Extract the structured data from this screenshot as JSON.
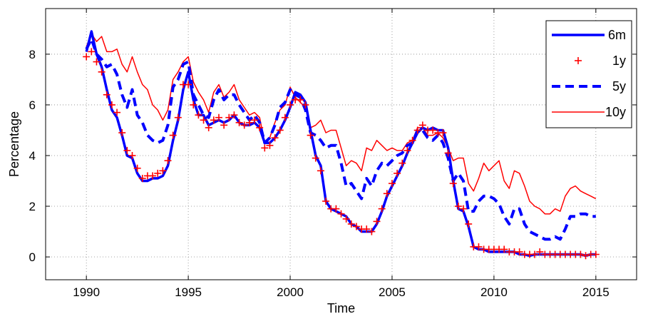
{
  "chart_data": {
    "type": "line",
    "title": "",
    "xlabel": "Time",
    "ylabel": "Percentage",
    "xlim": [
      1988,
      2017
    ],
    "ylim": [
      -0.9,
      9.8
    ],
    "x_ticks": [
      "1990",
      "1995",
      "2000",
      "2005",
      "2010",
      "2015"
    ],
    "y_ticks": [
      "0",
      "2",
      "4",
      "6",
      "8"
    ],
    "grid": true,
    "legend_position": "top-right",
    "x": [
      1990.0,
      1990.25,
      1990.5,
      1990.75,
      1991.0,
      1991.25,
      1991.5,
      1991.75,
      1992.0,
      1992.25,
      1992.5,
      1992.75,
      1993.0,
      1993.25,
      1993.5,
      1993.75,
      1994.0,
      1994.25,
      1994.5,
      1994.75,
      1995.0,
      1995.25,
      1995.5,
      1995.75,
      1996.0,
      1996.25,
      1996.5,
      1996.75,
      1997.0,
      1997.25,
      1997.5,
      1997.75,
      1998.0,
      1998.25,
      1998.5,
      1998.75,
      1999.0,
      1999.25,
      1999.5,
      1999.75,
      2000.0,
      2000.25,
      2000.5,
      2000.75,
      2001.0,
      2001.25,
      2001.5,
      2001.75,
      2002.0,
      2002.25,
      2002.5,
      2002.75,
      2003.0,
      2003.25,
      2003.5,
      2003.75,
      2004.0,
      2004.25,
      2004.5,
      2004.75,
      2005.0,
      2005.25,
      2005.5,
      2005.75,
      2006.0,
      2006.25,
      2006.5,
      2006.75,
      2007.0,
      2007.25,
      2007.5,
      2007.75,
      2008.0,
      2008.25,
      2008.5,
      2008.75,
      2009.0,
      2009.25,
      2009.5,
      2009.75,
      2010.0,
      2010.25,
      2010.5,
      2010.75,
      2011.0,
      2011.25,
      2011.5,
      2011.75,
      2012.0,
      2012.25,
      2012.5,
      2012.75,
      2013.0,
      2013.25,
      2013.5,
      2013.75,
      2014.0,
      2014.25,
      2014.5,
      2014.75,
      2015.0
    ],
    "series": [
      {
        "name": "6m",
        "color": "#0000ff",
        "style": "solid-thick",
        "values": [
          8.1,
          8.9,
          8.0,
          7.5,
          6.6,
          5.8,
          5.5,
          4.8,
          4.0,
          3.9,
          3.3,
          3.0,
          3.0,
          3.1,
          3.1,
          3.2,
          3.6,
          4.6,
          5.4,
          6.6,
          7.3,
          6.2,
          5.6,
          5.6,
          5.2,
          5.3,
          5.4,
          5.3,
          5.4,
          5.6,
          5.3,
          5.2,
          5.2,
          5.3,
          5.1,
          4.5,
          4.5,
          4.7,
          5.0,
          5.4,
          5.9,
          6.5,
          6.4,
          6.1,
          5.0,
          4.0,
          3.6,
          2.2,
          1.9,
          1.8,
          1.7,
          1.6,
          1.3,
          1.2,
          1.0,
          1.0,
          1.0,
          1.3,
          1.8,
          2.4,
          2.8,
          3.2,
          3.6,
          4.1,
          4.5,
          4.9,
          5.1,
          5.0,
          5.1,
          5.0,
          5.0,
          4.3,
          3.0,
          1.9,
          1.8,
          1.2,
          0.4,
          0.3,
          0.3,
          0.2,
          0.2,
          0.2,
          0.2,
          0.2,
          0.2,
          0.1,
          0.1,
          0.05,
          0.1,
          0.1,
          0.1,
          0.1,
          0.1,
          0.1,
          0.1,
          0.1,
          0.1,
          0.1,
          0.05,
          0.1,
          0.1
        ]
      },
      {
        "name": "1y",
        "color": "#ff0000",
        "style": "plus-markers",
        "values": [
          7.9,
          8.1,
          7.7,
          7.3,
          6.4,
          6.0,
          5.7,
          4.9,
          4.2,
          4.0,
          3.5,
          3.1,
          3.2,
          3.2,
          3.3,
          3.4,
          3.8,
          4.8,
          5.5,
          6.8,
          6.8,
          6.0,
          5.6,
          5.4,
          5.1,
          5.4,
          5.5,
          5.2,
          5.5,
          5.6,
          5.3,
          5.2,
          5.3,
          5.4,
          5.1,
          4.3,
          4.4,
          4.7,
          5.0,
          5.5,
          6.0,
          6.2,
          6.2,
          6.0,
          4.8,
          3.9,
          3.4,
          2.2,
          1.9,
          1.9,
          1.7,
          1.5,
          1.3,
          1.2,
          1.1,
          1.1,
          1.0,
          1.4,
          1.9,
          2.5,
          2.9,
          3.3,
          3.7,
          4.2,
          4.6,
          5.0,
          5.2,
          5.0,
          5.0,
          4.9,
          4.9,
          4.1,
          2.9,
          2.0,
          1.9,
          1.3,
          0.4,
          0.4,
          0.3,
          0.3,
          0.3,
          0.3,
          0.3,
          0.2,
          0.2,
          0.2,
          0.1,
          0.1,
          0.1,
          0.2,
          0.1,
          0.1,
          0.1,
          0.1,
          0.1,
          0.1,
          0.1,
          0.1,
          0.05,
          0.1,
          0.1
        ]
      },
      {
        "name": "5y",
        "color": "#0000ff",
        "style": "dashed-thick",
        "values": [
          8.2,
          8.6,
          8.0,
          7.8,
          7.5,
          7.6,
          7.2,
          6.4,
          5.9,
          6.6,
          5.6,
          5.3,
          4.8,
          4.6,
          4.5,
          4.6,
          5.2,
          6.7,
          7.0,
          7.6,
          7.7,
          6.4,
          6.0,
          5.6,
          5.5,
          6.2,
          6.6,
          6.2,
          6.4,
          6.4,
          6.0,
          5.7,
          5.4,
          5.6,
          5.3,
          4.5,
          4.7,
          5.2,
          5.9,
          6.1,
          6.6,
          6.4,
          6.3,
          5.8,
          4.9,
          4.8,
          4.6,
          4.3,
          4.4,
          4.4,
          3.7,
          2.8,
          2.9,
          2.6,
          2.3,
          3.1,
          2.8,
          3.4,
          3.7,
          3.6,
          3.8,
          4.0,
          4.1,
          4.4,
          4.5,
          5.0,
          5.0,
          4.7,
          4.6,
          4.8,
          4.5,
          3.9,
          3.0,
          3.3,
          3.0,
          1.8,
          1.8,
          2.2,
          2.4,
          2.4,
          2.3,
          2.1,
          1.6,
          1.3,
          1.9,
          1.9,
          1.3,
          1.0,
          0.9,
          0.8,
          0.7,
          0.7,
          0.8,
          0.7,
          1.1,
          1.6,
          1.6,
          1.7,
          1.7,
          1.6,
          1.6
        ]
      },
      {
        "name": "10y",
        "color": "#ff0000",
        "style": "solid-thin",
        "values": [
          8.3,
          8.8,
          8.5,
          8.7,
          8.1,
          8.1,
          8.2,
          7.6,
          7.3,
          7.9,
          7.3,
          6.8,
          6.6,
          6.0,
          5.8,
          5.4,
          5.8,
          7.0,
          7.3,
          7.7,
          7.9,
          6.9,
          6.5,
          6.2,
          5.7,
          6.5,
          6.8,
          6.3,
          6.5,
          6.8,
          6.2,
          5.9,
          5.6,
          5.7,
          5.5,
          4.5,
          4.7,
          5.3,
          5.8,
          6.0,
          6.7,
          6.3,
          6.1,
          5.9,
          5.1,
          5.2,
          5.4,
          4.9,
          5.0,
          5.0,
          4.3,
          3.6,
          3.8,
          3.7,
          3.4,
          4.3,
          4.2,
          4.6,
          4.4,
          4.2,
          4.3,
          4.2,
          4.2,
          4.5,
          4.6,
          5.1,
          5.1,
          4.8,
          4.8,
          4.9,
          4.7,
          4.3,
          3.8,
          3.9,
          3.9,
          2.9,
          2.6,
          3.1,
          3.7,
          3.4,
          3.6,
          3.8,
          3.0,
          2.7,
          3.4,
          3.3,
          2.8,
          2.2,
          2.0,
          1.9,
          1.7,
          1.7,
          1.9,
          1.8,
          2.4,
          2.7,
          2.8,
          2.6,
          2.5,
          2.4,
          2.3
        ]
      }
    ]
  }
}
